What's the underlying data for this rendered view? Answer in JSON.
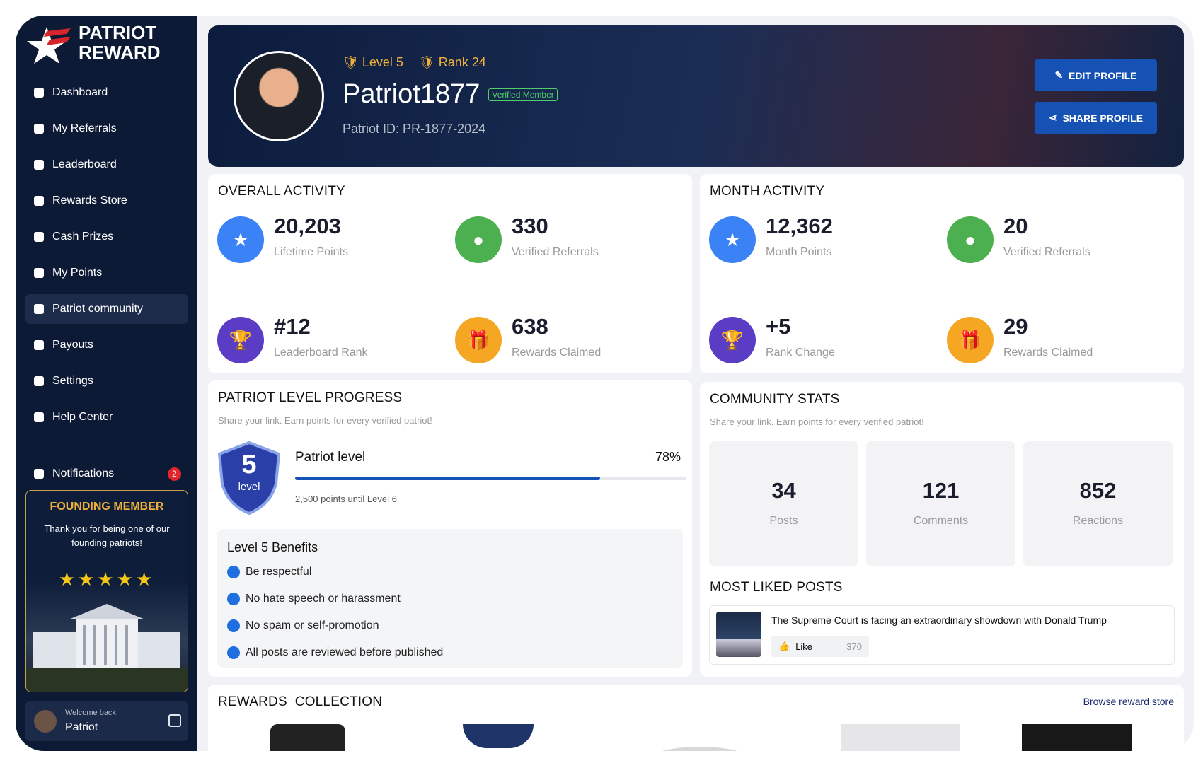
{
  "sidebar": {
    "brand": [
      "PATRIOT",
      "REWARD"
    ],
    "nav": [
      "Dashboard",
      "My Referrals",
      "Leaderboard",
      "Rewards Store",
      "Cash Prizes",
      "My Points",
      "Patriot community",
      "Payouts",
      "Settings",
      "Help Center"
    ],
    "notifications": {
      "label": "Notifications",
      "badge": "2"
    },
    "founding": {
      "title": "FOUNDING MEMBER",
      "text": "Thank you for being one of our founding patriots!"
    },
    "user": {
      "greeting": "Welcome back,",
      "name": "Patriot"
    }
  },
  "profile": {
    "level": "Level 5",
    "rank": "Rank 24",
    "username": "Patriot1877",
    "badge": "Verified Member",
    "patriot_id": "Patriot ID: PR-1877-2024",
    "buttons": [
      "EDIT PROFILE",
      "SHARE PROFILE"
    ]
  },
  "overall_activity": {
    "title": "OVERALL ACTIVITY",
    "stats": [
      {
        "value": "20,203",
        "label": "Lifetime Points"
      },
      {
        "value": "330",
        "label": "Verified Referrals"
      },
      {
        "value": "#12",
        "label": "Leaderboard Rank"
      },
      {
        "value": "638",
        "label": "Rewards Claimed"
      }
    ]
  },
  "month_activity": {
    "title": "MONTH ACTIVITY",
    "stats": [
      {
        "value": "12,362",
        "label": "Month Points"
      },
      {
        "value": "20",
        "label": "Verified Referrals"
      },
      {
        "value": "+5",
        "label": "Rank Change"
      },
      {
        "value": "29",
        "label": "Rewards Claimed"
      }
    ]
  },
  "level_progress": {
    "title": "PATRIOT LEVEL PROGRESS",
    "subtitle": "Share your link. Earn points for every verified patriot!",
    "badge_number": "5",
    "badge_text": "level",
    "label": "Patriot level",
    "progress": {
      "value": 78,
      "label": "78%"
    },
    "note": "2,500 points until Level 6",
    "benefits_title": "Level 5 Benefits",
    "benefits": [
      "Be respectful",
      "No hate speech or harassment",
      "No spam or self-promotion",
      "All posts are reviewed before published"
    ]
  },
  "community_stats": {
    "title": "COMMUNITY STATS",
    "subtitle": "Share your link. Earn points for every verified patriot!",
    "stats": [
      {
        "value": "34",
        "label": "Posts"
      },
      {
        "value": "121",
        "label": "Comments"
      },
      {
        "value": "852",
        "label": "Reactions"
      }
    ],
    "most_liked_title": "MOST LIKED POSTS",
    "post": {
      "title": "The Supreme Court is facing an extraordinary showdown with Donald Trump",
      "like": "Like",
      "count": "370"
    }
  },
  "rewards": {
    "title": "REWARDS  COLLECTION",
    "link": "Browse reward store"
  }
}
